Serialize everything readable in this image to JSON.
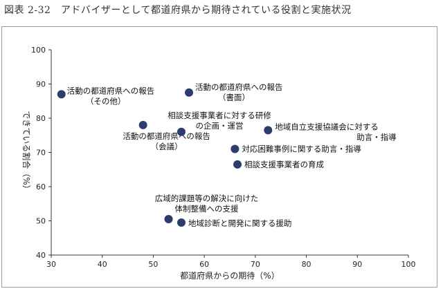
{
  "figure": {
    "title": "図表 2-32　アドバイザーとして都道府県から期待されている役割と実施状況"
  },
  "chart_data": {
    "type": "scatter",
    "xlabel": "都道府県からの期待（%）",
    "ylabel": "できている割合（%）",
    "xlim": [
      30,
      100
    ],
    "ylim": [
      40,
      100
    ],
    "xticks": [
      "30",
      "40",
      "50",
      "60",
      "70",
      "80",
      "90",
      "100"
    ],
    "yticks": [
      "40",
      "50",
      "60",
      "70",
      "80",
      "90",
      "100"
    ],
    "grid": false,
    "marker_color": "#2b3d6b",
    "points": [
      {
        "x": 32,
        "y": 87,
        "label": [
          "活動の都道府県への報告",
          "（その他）"
        ]
      },
      {
        "x": 57,
        "y": 87.5,
        "label": [
          "活動の都道府県への報告",
          "（書面）"
        ]
      },
      {
        "x": 48,
        "y": 78,
        "label": [
          "活動の都道府県への報告",
          "（会議）"
        ]
      },
      {
        "x": 55.5,
        "y": 76,
        "label": [
          "相談支援事業者に対する研修",
          "の企画・運営"
        ]
      },
      {
        "x": 72.5,
        "y": 76.5,
        "label": [
          "地域自立支援協議会に対する",
          "助言・指導"
        ]
      },
      {
        "x": 66,
        "y": 71,
        "label": [
          "対応困難事例に関する助言・指導"
        ]
      },
      {
        "x": 66.5,
        "y": 66.5,
        "label": [
          "相談支援事業者の育成"
        ]
      },
      {
        "x": 53,
        "y": 50.5,
        "label": [
          "広域的課題等の解決に向けた",
          "体制整備への支援"
        ]
      },
      {
        "x": 55.5,
        "y": 49.5,
        "label": [
          "地域診断と開発に関する援助"
        ]
      }
    ]
  }
}
